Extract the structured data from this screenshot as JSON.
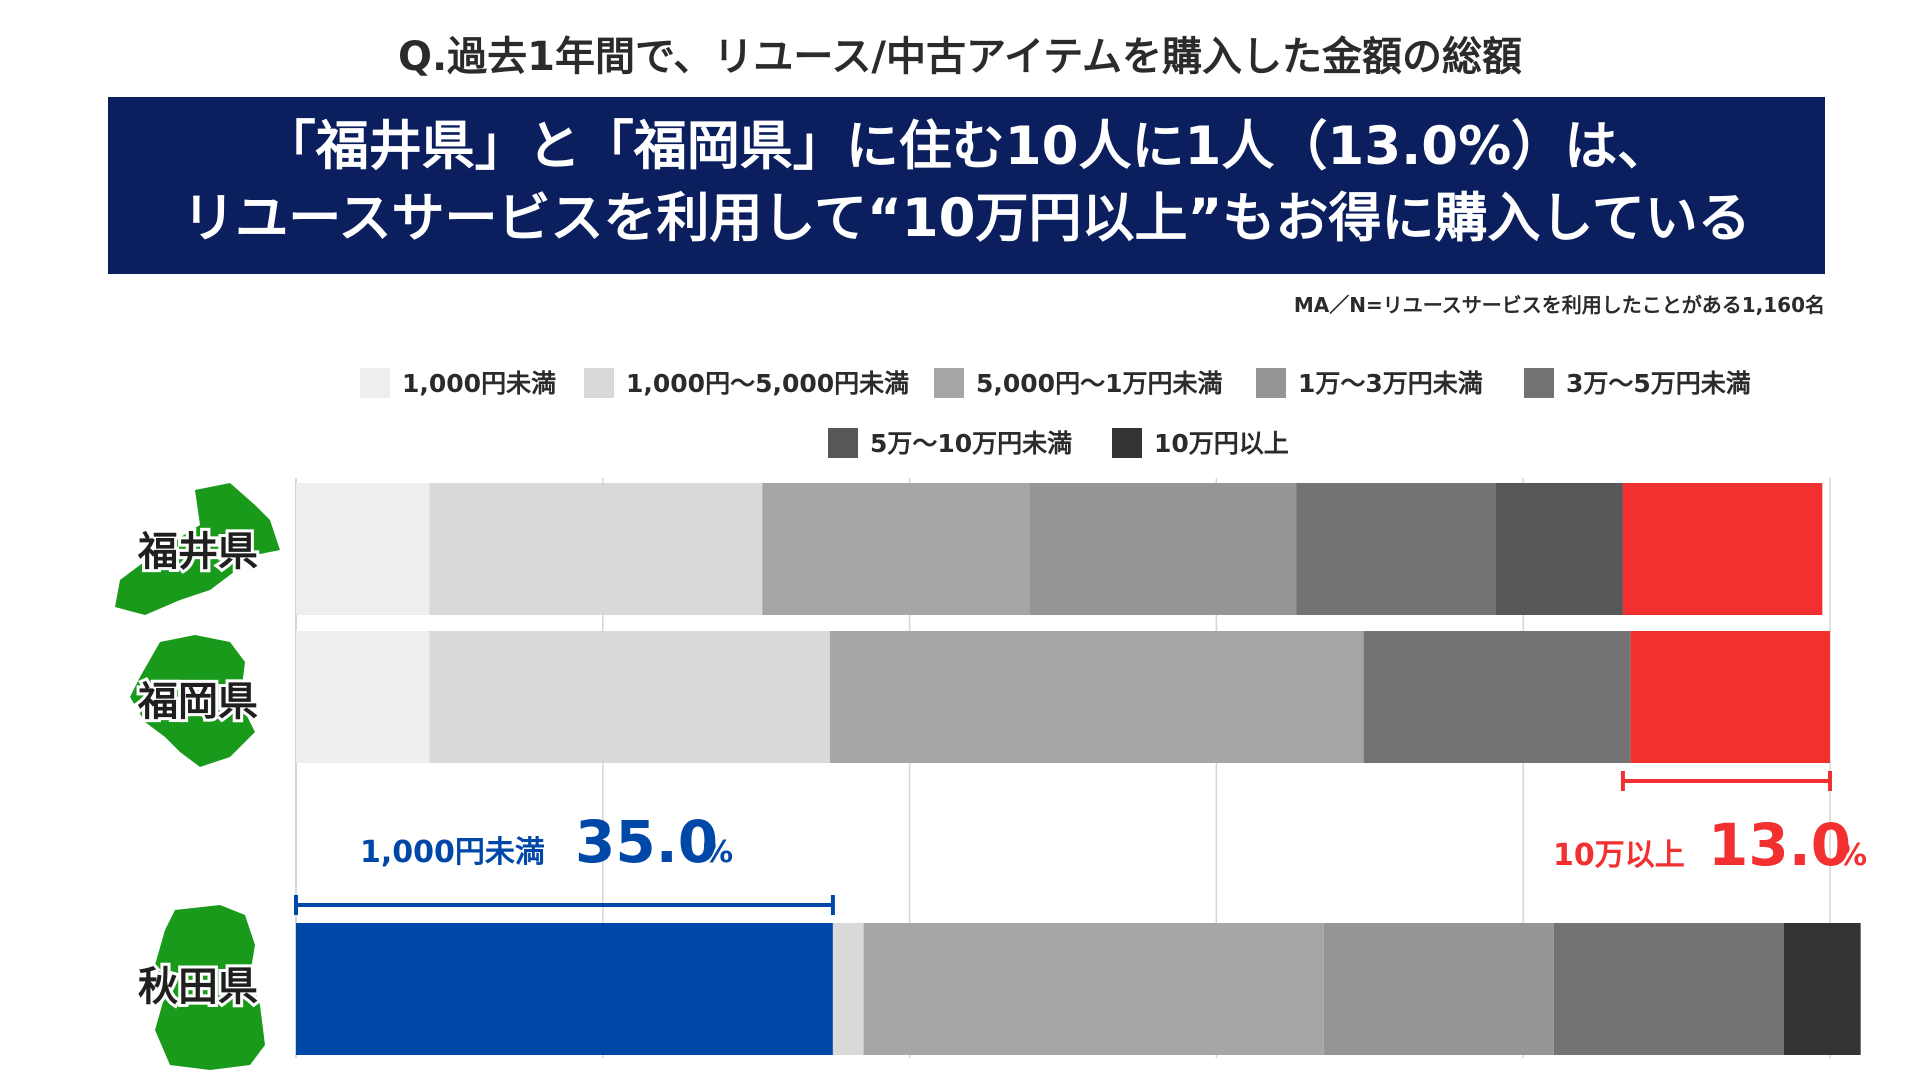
{
  "question": "Q.過去1年間で、リユース/中古アイテムを購入した金額の総額",
  "headline": {
    "line1": "「福井県」と「福岡県」に住む10人に1人（13.0%）は、",
    "line2": "リユースサービスを利用して“10万円以上”もお得に購入している"
  },
  "note": "MA／N=リユースサービスを利用したことがある1,160名",
  "chart_data": {
    "type": "bar",
    "orientation": "horizontal-stacked-100",
    "xlim": [
      0,
      100
    ],
    "grid": true,
    "legend_placement": "top",
    "legend": [
      {
        "label": "1,000円未満",
        "color": "#eeeeee"
      },
      {
        "label": "1,000円〜5,000円未満",
        "color": "#d9d9d9"
      },
      {
        "label": "5,000円〜1万円未満",
        "color": "#a6a6a6"
      },
      {
        "label": "1万〜3万円未満",
        "color": "#959595"
      },
      {
        "label": "3万〜5万円未満",
        "color": "#737373"
      },
      {
        "label": "5万〜10万円未満",
        "color": "#575757"
      },
      {
        "label": "10万円以上",
        "color": "#333333"
      }
    ],
    "rows": [
      {
        "label": "福井県",
        "values": [
          8.7,
          21.7,
          17.4,
          17.4,
          13.0,
          8.3,
          13.0
        ],
        "highlight_color": "#f23030"
      },
      {
        "label": "福岡県",
        "values": [
          8.7,
          26.1,
          34.8,
          0,
          17.4,
          0,
          13.0
        ],
        "highlight_color": "#f23030"
      },
      {
        "label": "秋田県",
        "values": [
          35.0,
          2.0,
          30.0,
          15.0,
          15.0,
          0,
          5.0
        ],
        "highlight_color": "#0048a8"
      }
    ],
    "highlight_colors": {
      "red": "#f23030",
      "blue": "#0048a8"
    },
    "map_color": "#1a9a1a",
    "annotations": [
      {
        "label": "1,000円未満",
        "value": "35.0",
        "unit": "%",
        "color": "#0048a8"
      },
      {
        "label": "10万以上",
        "value": "13.0",
        "unit": "%",
        "color": "#f23030"
      }
    ]
  }
}
